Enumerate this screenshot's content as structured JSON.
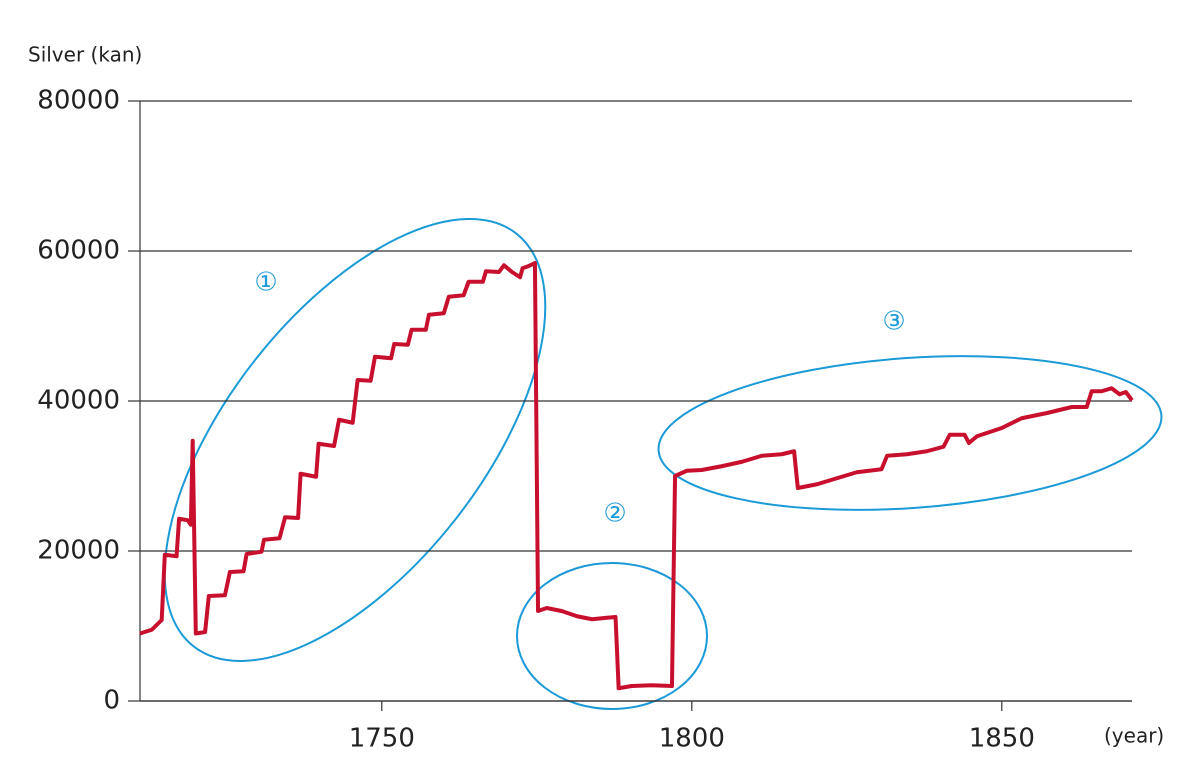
{
  "chart_data": {
    "type": "line",
    "y_label": "Silver (kan)",
    "x_label": "(year)",
    "color": "#c8102e",
    "xlim": [
      1711,
      1871
    ],
    "ylim": [
      0,
      80000
    ],
    "xticks": [
      1750,
      1800,
      1850
    ],
    "yticks": [
      0,
      20000,
      40000,
      60000,
      80000
    ],
    "grid": true,
    "annotations": [
      "①",
      "②",
      "③"
    ],
    "x": [
      1711.0,
      1712.9,
      1714.5,
      1715.0,
      1716.9,
      1717.3,
      1718.7,
      1719.2,
      1719.5,
      1720.0,
      1721.5,
      1722.1,
      1724.7,
      1725.5,
      1727.7,
      1728.2,
      1730.6,
      1731.0,
      1733.5,
      1734.4,
      1736.5,
      1736.9,
      1739.4,
      1739.8,
      1742.3,
      1743.1,
      1745.3,
      1746.1,
      1748.2,
      1748.9,
      1751.5,
      1752.0,
      1754.2,
      1754.8,
      1757.1,
      1757.6,
      1760.0,
      1760.8,
      1763.2,
      1764.0,
      1766.3,
      1766.8,
      1768.9,
      1769.7,
      1771.0,
      1772.3,
      1772.7,
      1773.7,
      1774.7,
      1775.2,
      1776.6,
      1779.0,
      1781.5,
      1783.9,
      1786.3,
      1787.7,
      1788.2,
      1790.3,
      1793.5,
      1796.8,
      1797.3,
      1799.2,
      1801.6,
      1804.8,
      1808.1,
      1811.3,
      1814.5,
      1816.5,
      1817.1,
      1820.2,
      1823.4,
      1826.6,
      1830.6,
      1831.5,
      1834.7,
      1837.9,
      1840.6,
      1841.6,
      1844.0,
      1844.7,
      1846.0,
      1850.0,
      1853.2,
      1857.3,
      1861.3,
      1863.7,
      1864.5,
      1866.1,
      1867.7,
      1869.0,
      1870.0,
      1871.0
    ],
    "values": [
      9000,
      9500,
      10800,
      19500,
      19300,
      24300,
      24100,
      23500,
      34700,
      9000,
      9200,
      14000,
      14100,
      17200,
      17300,
      19600,
      19900,
      21500,
      21700,
      24500,
      24400,
      30300,
      29900,
      34300,
      34000,
      37500,
      37100,
      42800,
      42700,
      45900,
      45700,
      47600,
      47500,
      49500,
      49500,
      51500,
      51700,
      53900,
      54100,
      55900,
      55900,
      57300,
      57200,
      58100,
      57200,
      56500,
      57700,
      58000,
      58400,
      12000,
      12400,
      12000,
      11300,
      10900,
      11100,
      11200,
      1700,
      2000,
      2100,
      2000,
      30000,
      30700,
      30800,
      31300,
      31900,
      32700,
      32900,
      33300,
      28400,
      28900,
      29700,
      30500,
      30900,
      32700,
      32900,
      33300,
      33900,
      35500,
      35500,
      34400,
      35300,
      36400,
      37700,
      38400,
      39200,
      39200,
      41300,
      41300,
      41700,
      40900,
      41200,
      40100
    ]
  }
}
